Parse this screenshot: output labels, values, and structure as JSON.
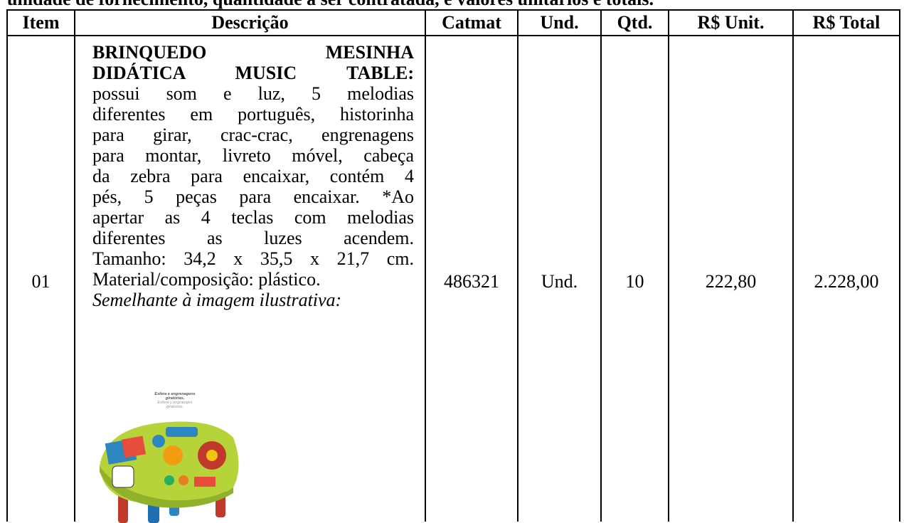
{
  "header": {
    "intro": "unidade de fornecimento, quantidade a ser contratada, e valores unitários e totais."
  },
  "table": {
    "columns": [
      "Item",
      "Descrição",
      "Catmat",
      "Und.",
      "Qtd.",
      "R$ Unit.",
      "R$ Total"
    ],
    "rows": [
      {
        "item": "01",
        "description": {
          "heading": [
            "BRINQUEDO MESINHA",
            "DIDÁTICA MUSIC TABLE:"
          ],
          "body": [
            "possui som e luz, 5 melodias",
            "diferentes em português, historinha",
            "para girar, crac-crac, engrenagens",
            "para montar, livreto móvel, cabeça",
            "da zebra para encaixar, contém 4",
            "pés, 5 peças para encaixar. *Ao",
            "apertar as 4 teclas com melodias",
            "diferentes as luzes acendem.",
            "Tamanho: 34,2 x 35,5 x 21,7 cm.",
            "Material/composição: plástico."
          ],
          "caption": "Semelhante à imagem ilustrativa:",
          "image_text": [
            "Esfera e engrenagens",
            "giratórias.",
            "Esfera y engranajes",
            "giratorios."
          ]
        },
        "catmat": "486321",
        "unit": "Und.",
        "quantity": "10",
        "unit_price": "222,80",
        "total_price": "2.228,00"
      }
    ]
  }
}
